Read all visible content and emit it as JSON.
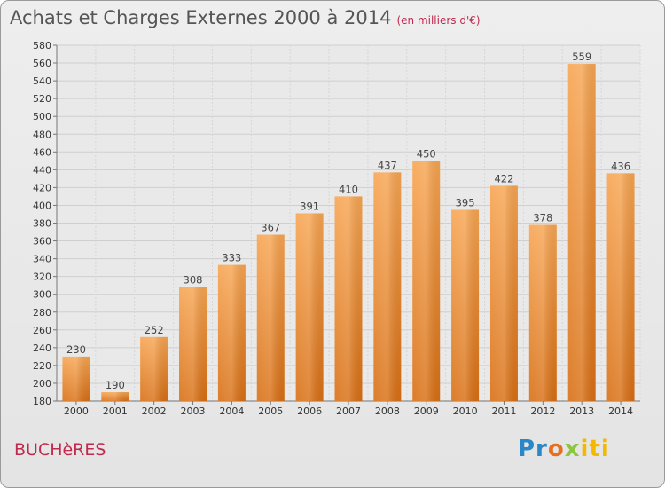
{
  "header": {
    "title": "Achats et Charges Externes 2000 à 2014",
    "unit": "(en milliers d'€)"
  },
  "footer": {
    "commune": "BUCHèRES",
    "logo": [
      "Pr",
      "o",
      "x",
      "iti"
    ]
  },
  "chart_data": {
    "type": "bar",
    "categories": [
      "2000",
      "2001",
      "2002",
      "2003",
      "2004",
      "2005",
      "2006",
      "2007",
      "2008",
      "2009",
      "2010",
      "2011",
      "2012",
      "2013",
      "2014"
    ],
    "values": [
      230,
      190,
      252,
      308,
      333,
      367,
      391,
      410,
      437,
      450,
      395,
      422,
      378,
      559,
      436
    ],
    "title": "Achats et Charges Externes 2000 à 2014",
    "ylim": [
      180,
      580
    ],
    "ytick_step": 20,
    "grid": true,
    "bar_color": "#f0922e"
  }
}
